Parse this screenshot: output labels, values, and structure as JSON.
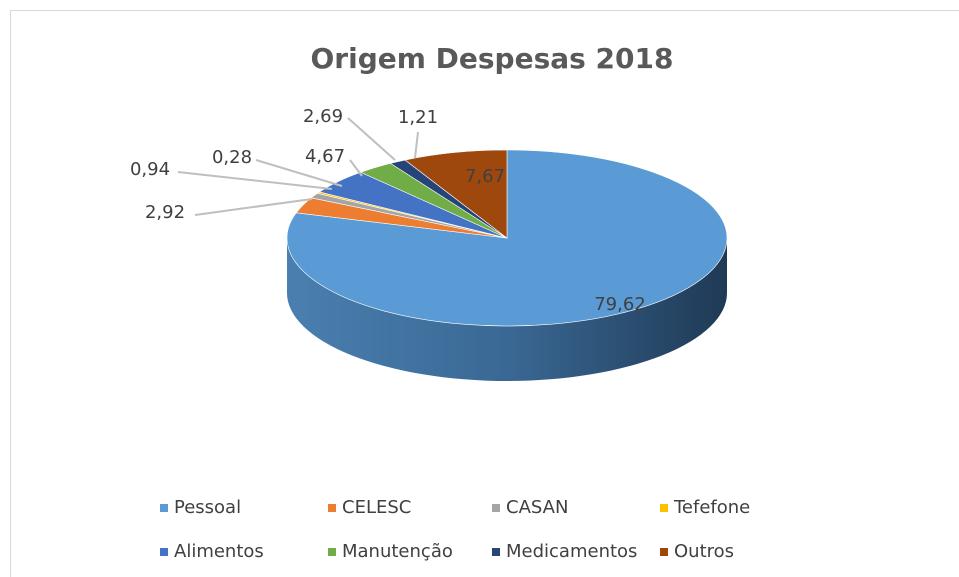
{
  "chart_data": {
    "type": "pie",
    "title": "Origem Despesas 2018",
    "categories": [
      "Pessoal",
      "CELESC",
      "CASAN",
      "Tefefone",
      "Alimentos",
      "Manutenção",
      "Medicamentos",
      "Outros"
    ],
    "values": [
      79.62,
      2.92,
      0.94,
      0.28,
      4.67,
      2.69,
      1.21,
      7.67
    ],
    "value_labels": [
      "79,62",
      "2,92",
      "0,94",
      "0,28",
      "4,67",
      "2,69",
      "1,21",
      "7,67"
    ],
    "colors": [
      "#5b9bd5",
      "#ed7d31",
      "#a5a5a5",
      "#ffc000",
      "#4472c4",
      "#70ad47",
      "#264478",
      "#9e480e"
    ],
    "legend": "bottom"
  }
}
